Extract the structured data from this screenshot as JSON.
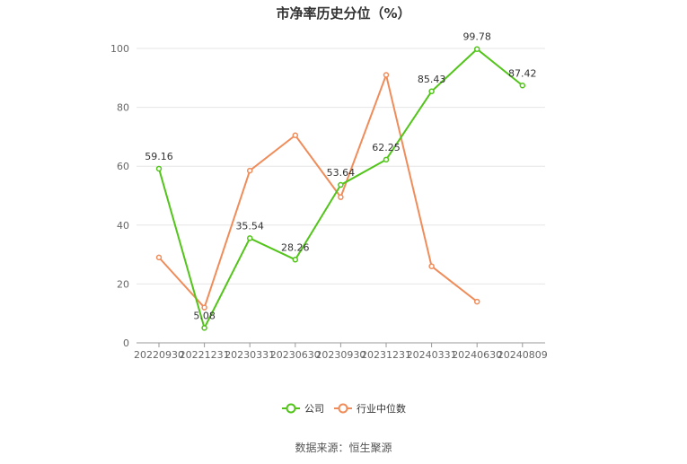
{
  "chart_data": {
    "type": "line",
    "title": "市净率历史分位（%）",
    "categories": [
      "20220930",
      "20221231",
      "20230331",
      "20230630",
      "20230930",
      "20231231",
      "20240331",
      "20240630",
      "20240809"
    ],
    "ylim": [
      0,
      100
    ],
    "yticks": [
      0,
      20,
      40,
      60,
      80,
      100
    ],
    "grid": true,
    "legend_position": "bottom-center",
    "series": [
      {
        "name": "公司",
        "color": "#52c41a",
        "values": [
          59.16,
          5.08,
          35.54,
          28.26,
          53.64,
          62.25,
          85.43,
          99.78,
          87.42
        ],
        "labels": [
          "59.16",
          "5.08",
          "35.54",
          "28.26",
          "53.64",
          "62.25",
          "85.43",
          "99.78",
          "87.42"
        ]
      },
      {
        "name": "行业中位数",
        "color": "#f08c5a",
        "values": [
          29,
          12,
          58.5,
          70.5,
          49.5,
          91,
          26,
          14,
          null
        ]
      }
    ]
  },
  "source_text": "数据来源：恒生聚源"
}
